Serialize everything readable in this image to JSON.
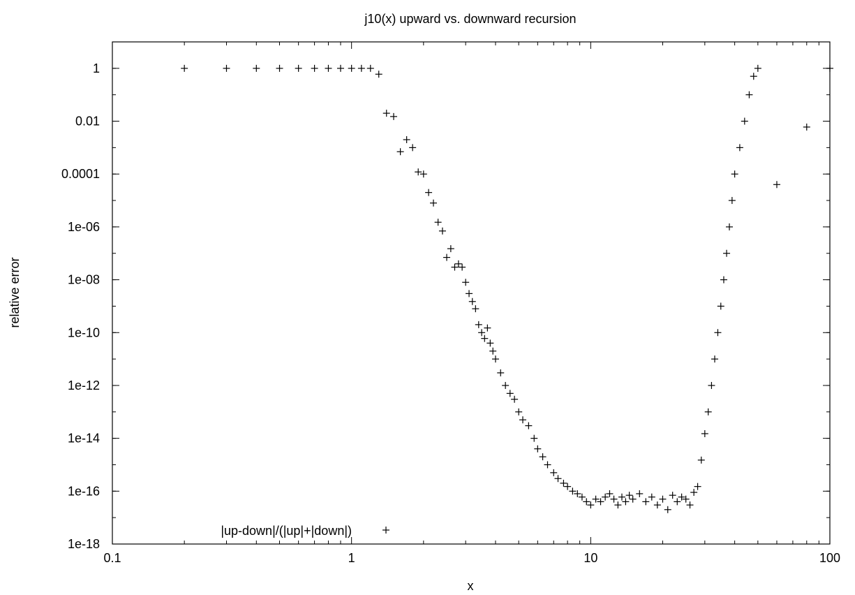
{
  "chart_data": {
    "type": "scatter",
    "title": "j10(x) upward vs. downward recursion",
    "xlabel": "x",
    "ylabel": "relative error",
    "x_scale": "log",
    "y_scale": "log",
    "xlim": [
      0.1,
      100
    ],
    "ylim": [
      1e-18,
      10
    ],
    "x_ticks": [
      {
        "value": 0.1,
        "label": "0.1"
      },
      {
        "value": 1,
        "label": "1"
      },
      {
        "value": 10,
        "label": "10"
      },
      {
        "value": 100,
        "label": "100"
      }
    ],
    "y_ticks": [
      {
        "value": 1,
        "label": "1"
      },
      {
        "value": 0.01,
        "label": "0.01"
      },
      {
        "value": 0.0001,
        "label": "0.0001"
      },
      {
        "value": 1e-06,
        "label": "1e-06"
      },
      {
        "value": 1e-08,
        "label": "1e-08"
      },
      {
        "value": 1e-10,
        "label": "1e-10"
      },
      {
        "value": 1e-12,
        "label": "1e-12"
      },
      {
        "value": 1e-14,
        "label": "1e-14"
      },
      {
        "value": 1e-16,
        "label": "1e-16"
      },
      {
        "value": 1e-18,
        "label": "1e-18"
      }
    ],
    "grid": false,
    "legend_position": "bottom-left",
    "marker": "plus",
    "series": [
      {
        "name": "|up-down|/(|up|+|down|)",
        "points": [
          [
            0.2,
            1
          ],
          [
            0.3,
            1
          ],
          [
            0.4,
            1
          ],
          [
            0.5,
            1
          ],
          [
            0.6,
            1
          ],
          [
            0.7,
            1
          ],
          [
            0.8,
            1
          ],
          [
            0.9,
            1
          ],
          [
            1.0,
            1
          ],
          [
            1.1,
            1
          ],
          [
            1.2,
            1
          ],
          [
            1.3,
            0.6
          ],
          [
            1.4,
            0.02
          ],
          [
            1.5,
            0.015
          ],
          [
            1.6,
            0.0007
          ],
          [
            1.7,
            0.002
          ],
          [
            1.8,
            0.001
          ],
          [
            1.9,
            0.00012
          ],
          [
            2.0,
            0.0001
          ],
          [
            2.1,
            2e-05
          ],
          [
            2.2,
            8e-06
          ],
          [
            2.3,
            1.5e-06
          ],
          [
            2.4,
            7e-07
          ],
          [
            2.5,
            7e-08
          ],
          [
            2.6,
            1.5e-07
          ],
          [
            2.7,
            3e-08
          ],
          [
            2.8,
            4e-08
          ],
          [
            2.9,
            3e-08
          ],
          [
            3.0,
            8e-09
          ],
          [
            3.1,
            3e-09
          ],
          [
            3.2,
            1.5e-09
          ],
          [
            3.3,
            8e-10
          ],
          [
            3.4,
            2e-10
          ],
          [
            3.5,
            1e-10
          ],
          [
            3.6,
            6e-11
          ],
          [
            3.7,
            1.5e-10
          ],
          [
            3.8,
            4e-11
          ],
          [
            3.9,
            2e-11
          ],
          [
            4.0,
            1e-11
          ],
          [
            4.2,
            3e-12
          ],
          [
            4.4,
            1e-12
          ],
          [
            4.6,
            5e-13
          ],
          [
            4.8,
            3e-13
          ],
          [
            5.0,
            1e-13
          ],
          [
            5.2,
            5e-14
          ],
          [
            5.5,
            3e-14
          ],
          [
            5.8,
            1e-14
          ],
          [
            6.0,
            4e-15
          ],
          [
            6.3,
            2e-15
          ],
          [
            6.6,
            1e-15
          ],
          [
            7.0,
            5e-16
          ],
          [
            7.3,
            3e-16
          ],
          [
            7.7,
            2e-16
          ],
          [
            8.0,
            1.5e-16
          ],
          [
            8.4,
            1e-16
          ],
          [
            8.8,
            8e-17
          ],
          [
            9.2,
            6e-17
          ],
          [
            9.6,
            4e-17
          ],
          [
            10.0,
            3e-17
          ],
          [
            10.5,
            5e-17
          ],
          [
            11.0,
            4e-17
          ],
          [
            11.5,
            6e-17
          ],
          [
            12.0,
            8e-17
          ],
          [
            12.5,
            5e-17
          ],
          [
            13.0,
            3e-17
          ],
          [
            13.5,
            6e-17
          ],
          [
            14.0,
            4e-17
          ],
          [
            14.5,
            7e-17
          ],
          [
            15.0,
            5e-17
          ],
          [
            16.0,
            8e-17
          ],
          [
            17.0,
            4e-17
          ],
          [
            18.0,
            6e-17
          ],
          [
            19.0,
            3e-17
          ],
          [
            20.0,
            5e-17
          ],
          [
            21.0,
            2e-17
          ],
          [
            22.0,
            7e-17
          ],
          [
            23.0,
            4e-17
          ],
          [
            24.0,
            6e-17
          ],
          [
            25.0,
            5e-17
          ],
          [
            26.0,
            3e-17
          ],
          [
            27.0,
            9e-17
          ],
          [
            28.0,
            1.5e-16
          ],
          [
            29.0,
            1.5e-15
          ],
          [
            30.0,
            1.5e-14
          ],
          [
            31.0,
            1e-13
          ],
          [
            32.0,
            1e-12
          ],
          [
            33.0,
            1e-11
          ],
          [
            34.0,
            1e-10
          ],
          [
            35.0,
            1e-09
          ],
          [
            36.0,
            1e-08
          ],
          [
            37.0,
            1e-07
          ],
          [
            38.0,
            1e-06
          ],
          [
            39.0,
            1e-05
          ],
          [
            40.0,
            0.0001
          ],
          [
            42.0,
            0.001
          ],
          [
            44.0,
            0.01
          ],
          [
            46.0,
            0.1
          ],
          [
            48.0,
            0.5
          ],
          [
            50.0,
            1
          ],
          [
            60.0,
            4e-05
          ],
          [
            80.0,
            0.006
          ],
          [
            100.0,
            1
          ]
        ]
      }
    ]
  }
}
